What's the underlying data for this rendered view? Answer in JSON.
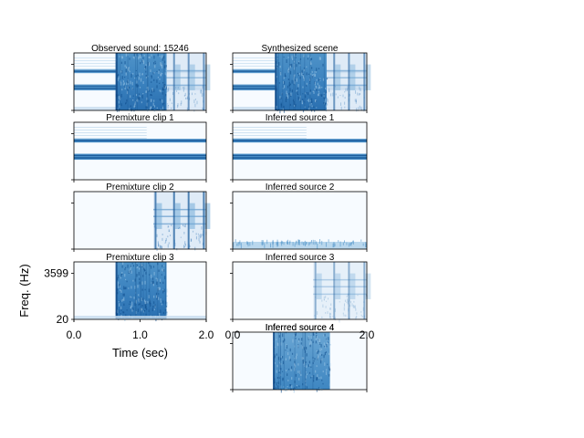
{
  "chart_data": {
    "type": "heatmap",
    "colormap": "Blues",
    "xlabel": "Time (sec)",
    "ylabel": "Freq. (Hz)",
    "xlim": [
      0.0,
      2.0
    ],
    "xticks": [
      "0.0",
      "1.0",
      "2.0"
    ],
    "yticks": [
      "20",
      "3599"
    ],
    "panels": [
      {
        "id": "observed",
        "title": "Observed sound: 15246",
        "content": "full-mix"
      },
      {
        "id": "synth",
        "title": "Synthesized scene",
        "content": "full-mix"
      },
      {
        "id": "premix1",
        "title": "Premixture clip 1",
        "content": "harmonic-tone"
      },
      {
        "id": "inferred1",
        "title": "Inferred source 1",
        "content": "harmonic-tone"
      },
      {
        "id": "premix2",
        "title": "Premixture clip 2",
        "content": "impacts"
      },
      {
        "id": "inferred2",
        "title": "Inferred source 2",
        "content": "low-noise"
      },
      {
        "id": "premix3",
        "title": "Premixture clip 3",
        "content": "noise-burst"
      },
      {
        "id": "inferred3",
        "title": "Inferred source 3",
        "content": "impacts-faint"
      },
      {
        "id": "inferred4",
        "title": "Inferred source 4",
        "content": "noise-burst"
      }
    ],
    "events": {
      "harmonic_tone_bands": [
        0.32,
        0.58,
        0.62
      ],
      "noise_burst": {
        "start": 0.63,
        "end": 1.4
      },
      "impacts": {
        "start": 1.2,
        "times": [
          1.22,
          1.5,
          1.72,
          1.95
        ]
      },
      "inferred_noise_burst": {
        "start": 0.6,
        "end": 1.45
      }
    }
  }
}
